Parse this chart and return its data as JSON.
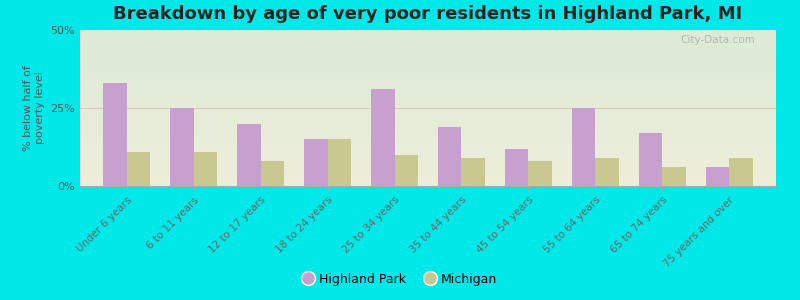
{
  "title": "Breakdown by age of very poor residents in Highland Park, MI",
  "categories": [
    "Under 6 years",
    "6 to 11 years",
    "12 to 17 years",
    "18 to 24 years",
    "25 to 34 years",
    "35 to 44 years",
    "45 to 54 years",
    "55 to 64 years",
    "65 to 74 years",
    "75 years and over"
  ],
  "highland_park": [
    33,
    25,
    20,
    15,
    31,
    19,
    12,
    25,
    17,
    6
  ],
  "michigan": [
    11,
    11,
    8,
    15,
    10,
    9,
    8,
    9,
    6,
    9
  ],
  "hp_color": "#c8a0d0",
  "mi_color": "#c8c890",
  "bg_outer": "#00e8e8",
  "bg_plot_top": "#dce8d8",
  "bg_plot_bottom": "#eeeeda",
  "ylabel": "% below half of\npoverty level",
  "ylim": [
    0,
    50
  ],
  "yticks": [
    0,
    25,
    50
  ],
  "ytick_labels": [
    "0%",
    "25%",
    "50%"
  ],
  "title_fontsize": 13,
  "legend_hp": "Highland Park",
  "legend_mi": "Michigan",
  "watermark": "City-Data.com"
}
